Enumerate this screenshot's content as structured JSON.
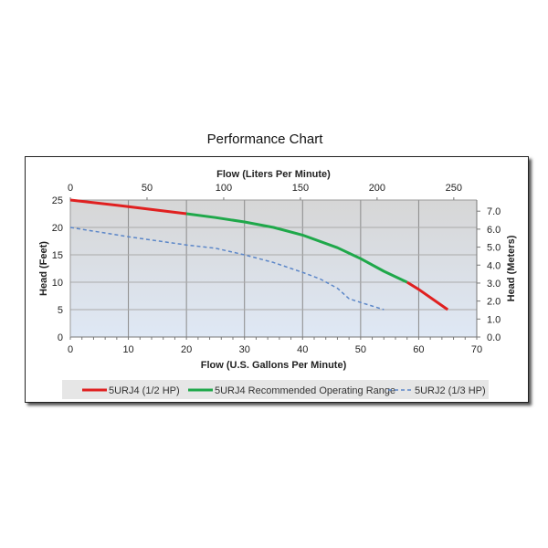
{
  "chart_data": {
    "type": "line",
    "title": "Performance Chart",
    "xlabel": "Flow (U.S. Gallons Per Minute)",
    "x2label": "Flow (Liters Per Minute)",
    "ylabel": "Head (Feet)",
    "y2label": "Head (Meters)",
    "xlim": [
      0,
      70
    ],
    "ylim": [
      0,
      25
    ],
    "x_ticks": [
      0,
      10,
      20,
      30,
      40,
      50,
      60,
      70
    ],
    "y_ticks": [
      0,
      5,
      10,
      15,
      20,
      25
    ],
    "x2_ticks": [
      "0",
      "50",
      "100",
      "150",
      "200",
      "250"
    ],
    "y2_ticks": [
      "0.0",
      "1.0",
      "2.0",
      "3.0",
      "4.0",
      "5.0",
      "6.0",
      "7.0"
    ],
    "grid": true,
    "legend_position": "bottom",
    "series": [
      {
        "name": "5URJ4 (1/2 HP)",
        "color": "#e02020",
        "style": "solid",
        "segments": [
          [
            [
              0,
              25
            ],
            [
              10,
              23.8
            ],
            [
              20,
              22.5
            ]
          ],
          [
            [
              58,
              10
            ],
            [
              60,
              8.7
            ],
            [
              65,
              5
            ]
          ]
        ]
      },
      {
        "name": "5URJ4 Recommended Operating Range",
        "color": "#1fa84a",
        "style": "solid",
        "segments": [
          [
            [
              20,
              22.5
            ],
            [
              25,
              21.8
            ],
            [
              30,
              21
            ],
            [
              35,
              20
            ],
            [
              40,
              18.6
            ],
            [
              46,
              16.3
            ],
            [
              50,
              14.3
            ],
            [
              54,
              12
            ],
            [
              58,
              10
            ]
          ]
        ]
      },
      {
        "name": "5URJ2 (1/3 HP)",
        "color": "#5b86c8",
        "style": "dashed",
        "segments": [
          [
            [
              0,
              20
            ],
            [
              10,
              18.3
            ],
            [
              20,
              16.8
            ],
            [
              25,
              16.2
            ],
            [
              30,
              15
            ],
            [
              35,
              13.6
            ],
            [
              40,
              11.8
            ],
            [
              43,
              10.6
            ],
            [
              46,
              8.9
            ],
            [
              48,
              7
            ],
            [
              50,
              6.3
            ],
            [
              54,
              5
            ]
          ]
        ]
      }
    ]
  }
}
